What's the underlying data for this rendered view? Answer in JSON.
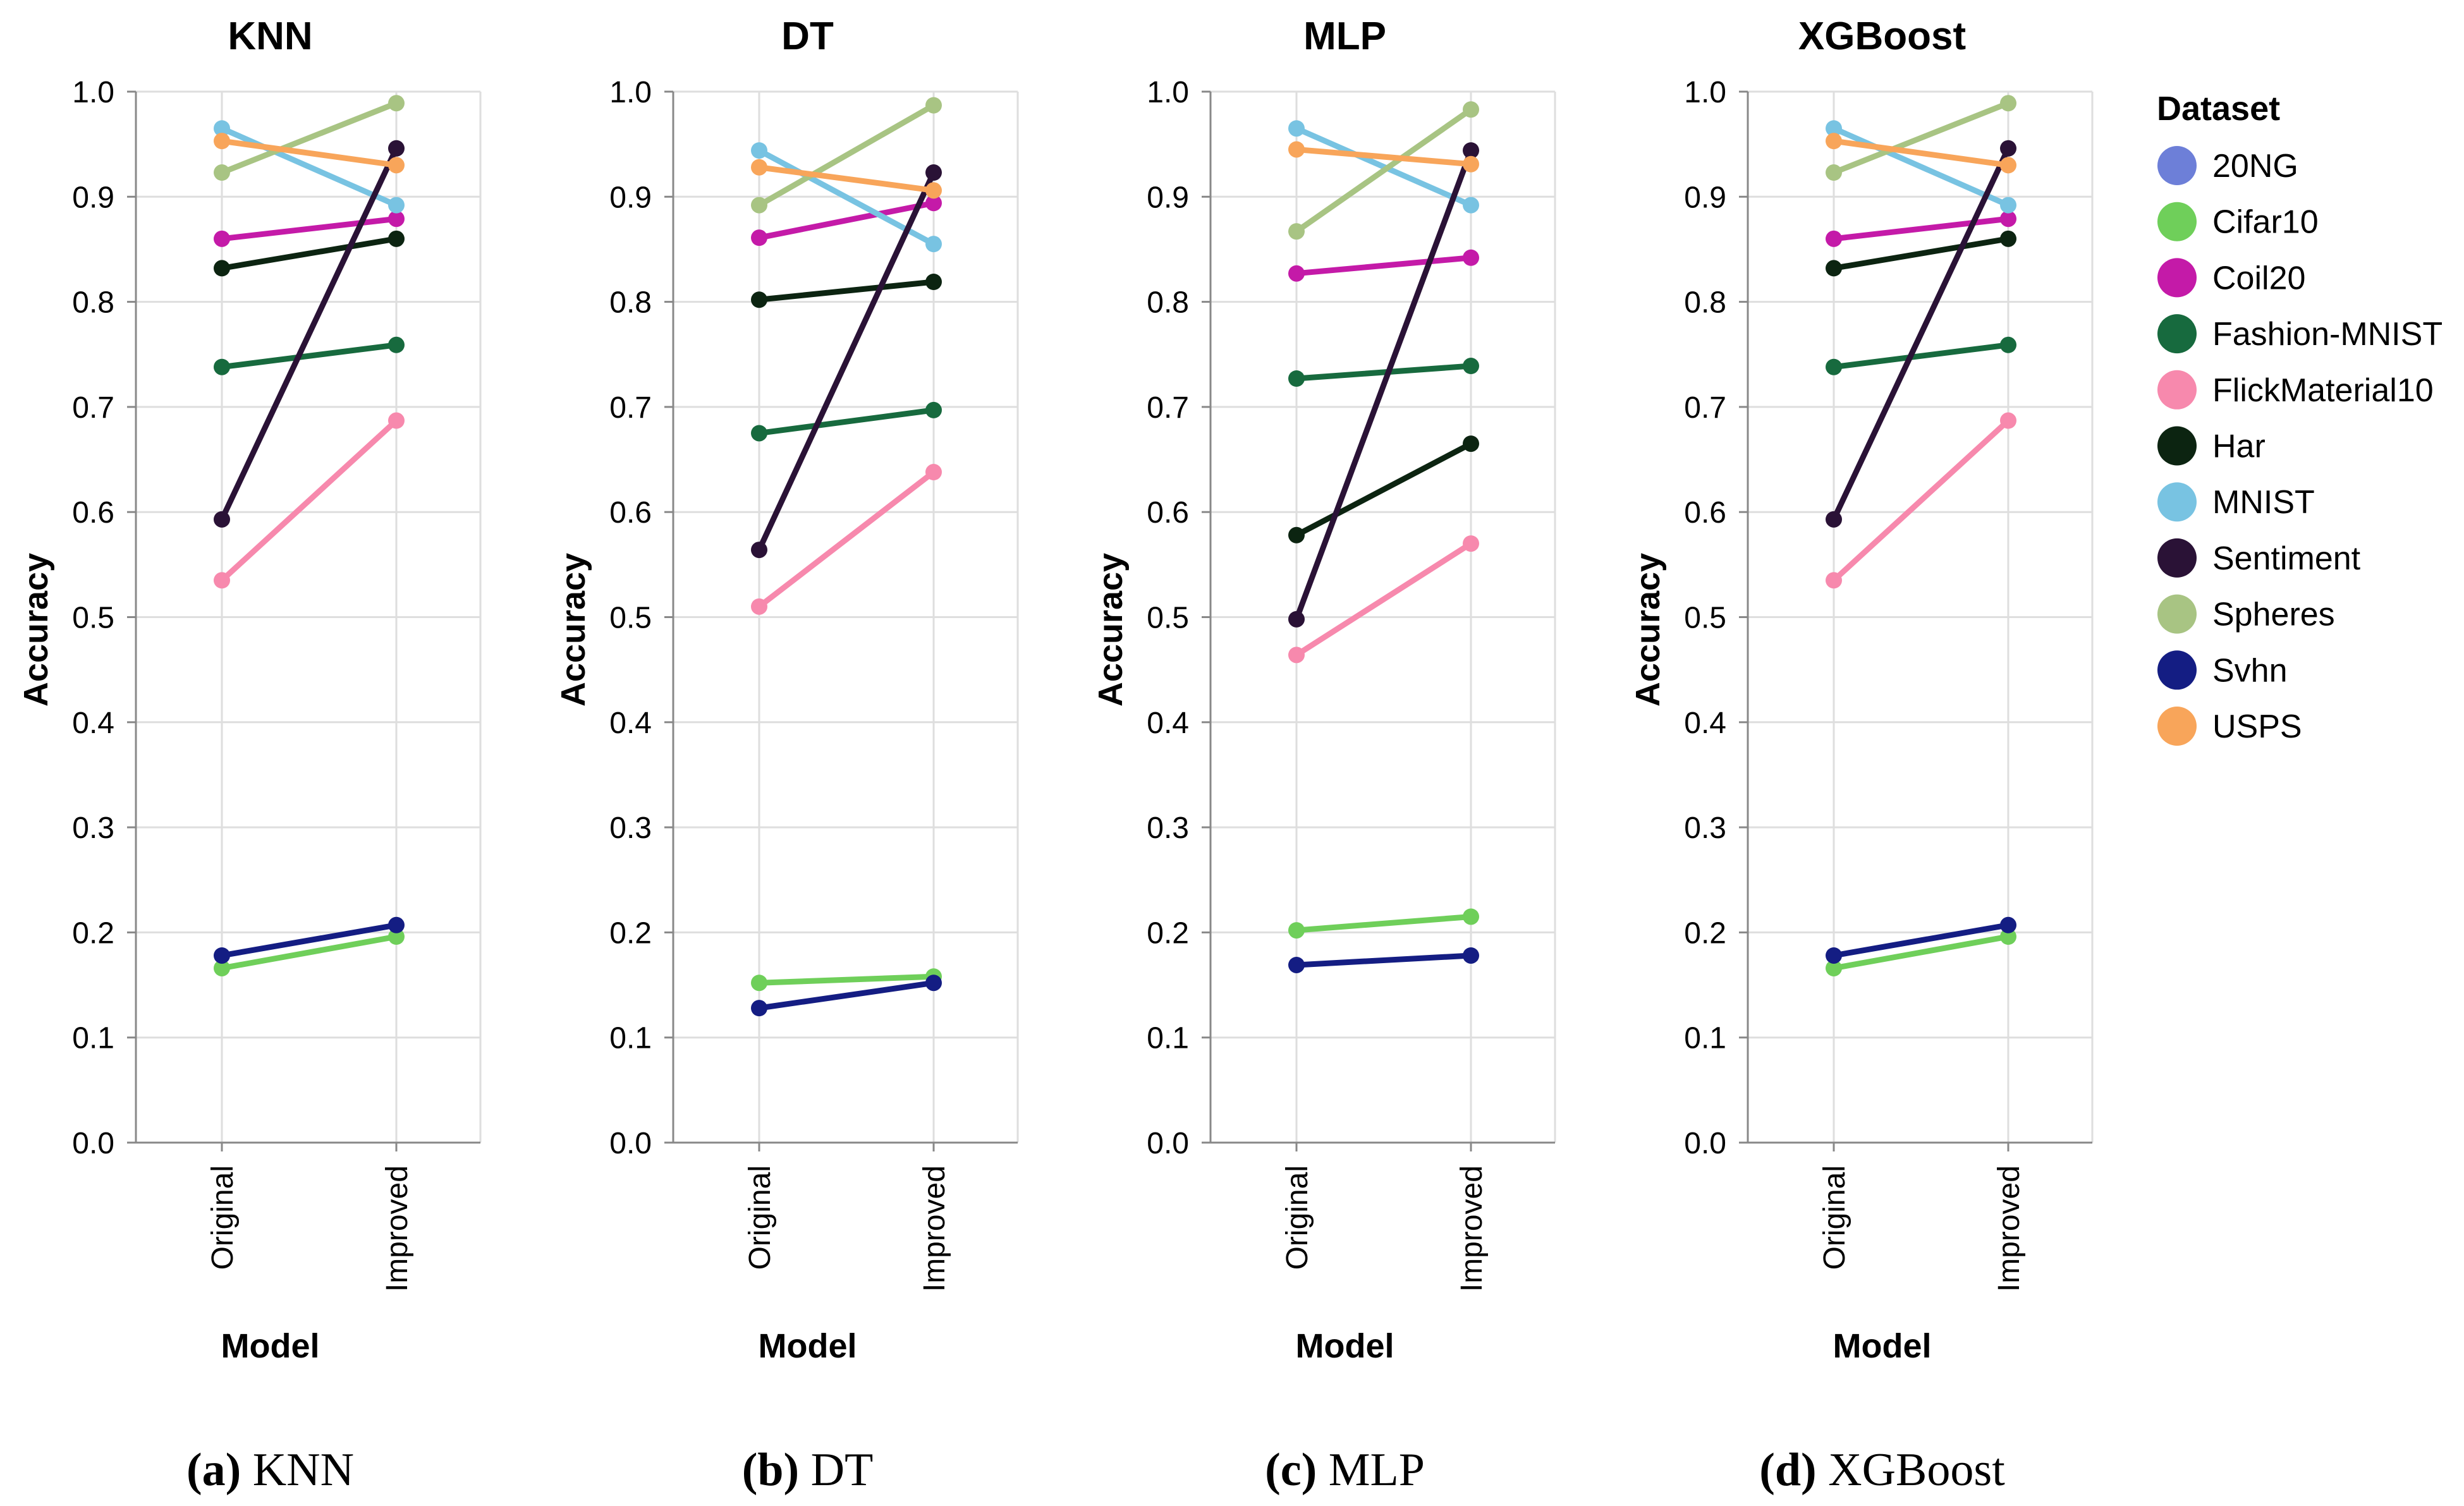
{
  "legend": {
    "title": "Dataset",
    "items": [
      {
        "label": "20NG",
        "color": "#6d7fd8"
      },
      {
        "label": "Cifar10",
        "color": "#6fcf5a"
      },
      {
        "label": "Coil20",
        "color": "#c41aa8"
      },
      {
        "label": "Fashion-MNIST",
        "color": "#176a3e"
      },
      {
        "label": "FlickMaterial10",
        "color": "#f789ad"
      },
      {
        "label": "Har",
        "color": "#0c2411"
      },
      {
        "label": "MNIST",
        "color": "#78c3e2"
      },
      {
        "label": "Sentiment",
        "color": "#2a1236"
      },
      {
        "label": "Spheres",
        "color": "#a8c483"
      },
      {
        "label": "Svhn",
        "color": "#141d83"
      },
      {
        "label": "USPS",
        "color": "#f8a55a"
      }
    ]
  },
  "chart_data": [
    {
      "type": "line",
      "title": "KNN",
      "xlabel": "Model",
      "ylabel": "Accuracy",
      "categories": [
        "Original",
        "Improved"
      ],
      "yticks": [
        "0.0",
        "0.1",
        "0.2",
        "0.3",
        "0.4",
        "0.5",
        "0.6",
        "0.7",
        "0.8",
        "0.9",
        "1.0"
      ],
      "ylim": [
        0,
        1
      ],
      "caption_letter": "(a)",
      "caption_text": " KNN",
      "series": [
        {
          "name": "Cifar10",
          "values": [
            0.166,
            0.196
          ]
        },
        {
          "name": "Coil20",
          "values": [
            0.86,
            0.879
          ]
        },
        {
          "name": "Fashion-MNIST",
          "values": [
            0.738,
            0.759
          ]
        },
        {
          "name": "FlickMaterial10",
          "values": [
            0.535,
            0.687
          ]
        },
        {
          "name": "Har",
          "values": [
            0.832,
            0.86
          ]
        },
        {
          "name": "MNIST",
          "values": [
            0.965,
            0.892
          ]
        },
        {
          "name": "Sentiment",
          "values": [
            0.593,
            0.946
          ]
        },
        {
          "name": "Spheres",
          "values": [
            0.923,
            0.989
          ]
        },
        {
          "name": "Svhn",
          "values": [
            0.178,
            0.207
          ]
        },
        {
          "name": "USPS",
          "values": [
            0.953,
            0.93
          ]
        }
      ]
    },
    {
      "type": "line",
      "title": "DT",
      "xlabel": "Model",
      "ylabel": "Accuracy",
      "categories": [
        "Original",
        "Improved"
      ],
      "yticks": [
        "0.0",
        "0.1",
        "0.2",
        "0.3",
        "0.4",
        "0.5",
        "0.6",
        "0.7",
        "0.8",
        "0.9",
        "1.0"
      ],
      "ylim": [
        0,
        1
      ],
      "caption_letter": "(b)",
      "caption_text": " DT",
      "series": [
        {
          "name": "Cifar10",
          "values": [
            0.152,
            0.158
          ]
        },
        {
          "name": "Coil20",
          "values": [
            0.861,
            0.894
          ]
        },
        {
          "name": "Fashion-MNIST",
          "values": [
            0.675,
            0.697
          ]
        },
        {
          "name": "FlickMaterial10",
          "values": [
            0.51,
            0.638
          ]
        },
        {
          "name": "Har",
          "values": [
            0.802,
            0.819
          ]
        },
        {
          "name": "MNIST",
          "values": [
            0.944,
            0.855
          ]
        },
        {
          "name": "Sentiment",
          "values": [
            0.564,
            0.923
          ]
        },
        {
          "name": "Spheres",
          "values": [
            0.892,
            0.987
          ]
        },
        {
          "name": "Svhn",
          "values": [
            0.128,
            0.152
          ]
        },
        {
          "name": "USPS",
          "values": [
            0.928,
            0.906
          ]
        }
      ]
    },
    {
      "type": "line",
      "title": "MLP",
      "xlabel": "Model",
      "ylabel": "Accuracy",
      "categories": [
        "Original",
        "Improved"
      ],
      "yticks": [
        "0.0",
        "0.1",
        "0.2",
        "0.3",
        "0.4",
        "0.5",
        "0.6",
        "0.7",
        "0.8",
        "0.9",
        "1.0"
      ],
      "ylim": [
        0,
        1
      ],
      "caption_letter": "(c)",
      "caption_text": " MLP",
      "series": [
        {
          "name": "Cifar10",
          "values": [
            0.202,
            0.215
          ]
        },
        {
          "name": "Coil20",
          "values": [
            0.827,
            0.842
          ]
        },
        {
          "name": "Fashion-MNIST",
          "values": [
            0.727,
            0.739
          ]
        },
        {
          "name": "FlickMaterial10",
          "values": [
            0.464,
            0.57
          ]
        },
        {
          "name": "Har",
          "values": [
            0.578,
            0.665
          ]
        },
        {
          "name": "MNIST",
          "values": [
            0.965,
            0.892
          ]
        },
        {
          "name": "Sentiment",
          "values": [
            0.498,
            0.944
          ]
        },
        {
          "name": "Spheres",
          "values": [
            0.867,
            0.983
          ]
        },
        {
          "name": "Svhn",
          "values": [
            0.169,
            0.178
          ]
        },
        {
          "name": "USPS",
          "values": [
            0.945,
            0.931
          ]
        }
      ]
    },
    {
      "type": "line",
      "title": "XGBoost",
      "xlabel": "Model",
      "ylabel": "Accuracy",
      "categories": [
        "Original",
        "Improved"
      ],
      "yticks": [
        "0.0",
        "0.1",
        "0.2",
        "0.3",
        "0.4",
        "0.5",
        "0.6",
        "0.7",
        "0.8",
        "0.9",
        "1.0"
      ],
      "ylim": [
        0,
        1
      ],
      "caption_letter": "(d)",
      "caption_text": " XGBoost",
      "series": [
        {
          "name": "Cifar10",
          "values": [
            0.166,
            0.196
          ]
        },
        {
          "name": "Coil20",
          "values": [
            0.86,
            0.879
          ]
        },
        {
          "name": "Fashion-MNIST",
          "values": [
            0.738,
            0.759
          ]
        },
        {
          "name": "FlickMaterial10",
          "values": [
            0.535,
            0.687
          ]
        },
        {
          "name": "Har",
          "values": [
            0.832,
            0.86
          ]
        },
        {
          "name": "MNIST",
          "values": [
            0.965,
            0.892
          ]
        },
        {
          "name": "Sentiment",
          "values": [
            0.593,
            0.946
          ]
        },
        {
          "name": "Spheres",
          "values": [
            0.923,
            0.989
          ]
        },
        {
          "name": "Svhn",
          "values": [
            0.178,
            0.207
          ]
        },
        {
          "name": "USPS",
          "values": [
            0.953,
            0.93
          ]
        }
      ]
    }
  ]
}
